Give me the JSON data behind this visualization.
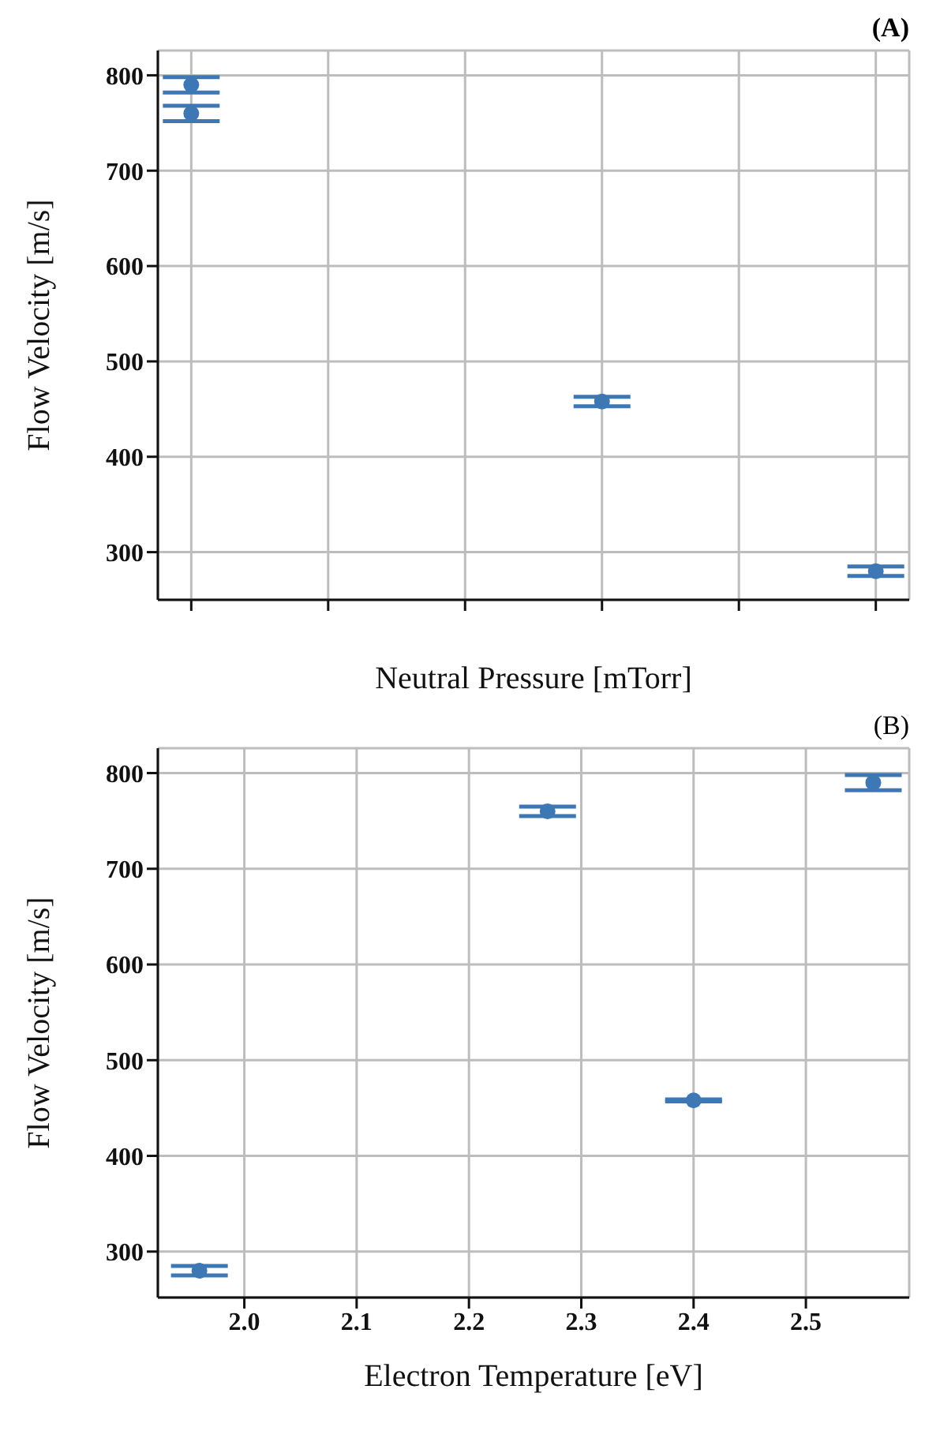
{
  "chart_data": [
    {
      "type": "scatter",
      "title": "(A)",
      "xlabel": "Neutral Pressure [mTorr]",
      "ylabel": "Flow Velocity [m/s]",
      "categories": [
        null,
        null,
        null,
        null,
        null,
        null
      ],
      "series": [
        {
          "color": "#3d78b5",
          "values": [
            790,
            null,
            null,
            458,
            null,
            280
          ],
          "errors": [
            8,
            null,
            null,
            5,
            null,
            5
          ]
        },
        {
          "color": "#3d78b5",
          "values": [
            760,
            null,
            null,
            null,
            null,
            null
          ],
          "errors": [
            8,
            null,
            null,
            null,
            null,
            null
          ]
        }
      ],
      "marker": "circle",
      "ylim": [
        250,
        826
      ],
      "yticks": [
        300,
        400,
        500,
        600,
        700,
        800
      ],
      "grid": true
    },
    {
      "type": "scatter",
      "title": "(B)",
      "xlabel": "Electron Temperature [eV]",
      "ylabel": "Flow Velocity [m/s]",
      "x": [
        1.96,
        2.27,
        2.4,
        2.56
      ],
      "series": [
        {
          "color": "#3d78b5",
          "values": [
            280,
            760,
            458,
            790
          ],
          "errors": [
            5,
            5,
            1,
            8
          ]
        }
      ],
      "marker": "circle",
      "xlim": [
        1.923,
        2.592
      ],
      "xticks": [
        {
          "value": 2.0,
          "label": "2.0"
        },
        2.1,
        2.2,
        2.3,
        2.4,
        2.5
      ],
      "ylim": [
        252,
        826
      ],
      "yticks": [
        300,
        400,
        500,
        600,
        700,
        800
      ],
      "grid": true
    }
  ]
}
